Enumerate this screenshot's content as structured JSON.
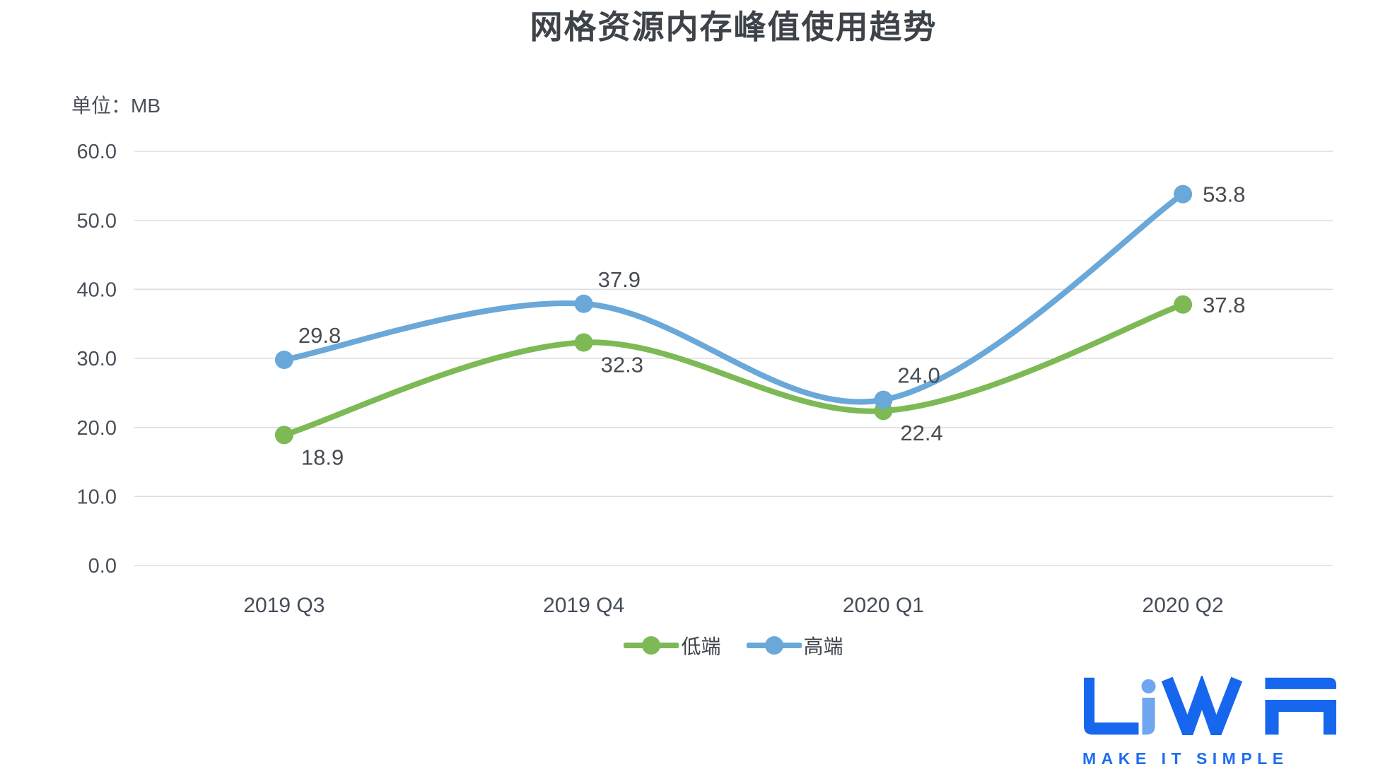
{
  "chart_data": {
    "type": "line",
    "title": "网格资源内存峰值使用趋势",
    "unit_label": "单位：MB",
    "categories": [
      "2019 Q3",
      "2019 Q4",
      "2020 Q1",
      "2020 Q2"
    ],
    "series": [
      {
        "name": "低端",
        "color": "#7db954",
        "values": [
          18.9,
          32.3,
          22.4,
          37.8
        ],
        "label_side": "below"
      },
      {
        "name": "高端",
        "color": "#69a8d8",
        "values": [
          29.8,
          37.9,
          24.0,
          53.8
        ],
        "label_side": "above"
      }
    ],
    "ylim": [
      0,
      60
    ],
    "ytick_labels": [
      "0.0",
      "10.0",
      "20.0",
      "30.0",
      "40.0",
      "50.0",
      "60.0"
    ],
    "xlabel": "",
    "ylabel": "MB",
    "grid": "horizontal",
    "gridline_color": "#dcdde0",
    "legend_position": "bottom-center",
    "smooth": true,
    "data_labels": true,
    "data_label_format": "one-decimal"
  },
  "logo": {
    "text": "LiWA",
    "tagline": "MAKE IT SIMPLE",
    "color_primary": "#1667ee",
    "color_accent": "#70a6f0"
  }
}
